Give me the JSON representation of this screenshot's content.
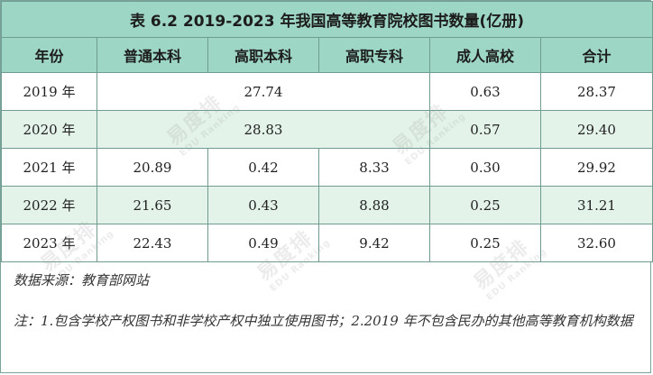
{
  "table": {
    "title": "表 6.2 2019-2023 年我国高等教育院校图书数量(亿册)",
    "headers": [
      "年份",
      "普通本科",
      "高职本科",
      "高职专科",
      "成人高校",
      "合计"
    ],
    "rows": [
      {
        "year": "2019 年",
        "merged": "27.74",
        "adult": "0.63",
        "total": "28.37"
      },
      {
        "year": "2020 年",
        "merged": "28.83",
        "adult": "0.57",
        "total": "29.40"
      },
      {
        "year": "2021 年",
        "undergrad": "20.89",
        "voc_bachelor": "0.42",
        "voc_college": "8.33",
        "adult": "0.30",
        "total": "29.92"
      },
      {
        "year": "2022 年",
        "undergrad": "21.65",
        "voc_bachelor": "0.43",
        "voc_college": "8.88",
        "adult": "0.25",
        "total": "31.21"
      },
      {
        "year": "2023 年",
        "undergrad": "22.43",
        "voc_bachelor": "0.49",
        "voc_college": "9.42",
        "adult": "0.25",
        "total": "32.60"
      }
    ]
  },
  "notes": {
    "source": "数据来源：教育部网站",
    "note": "注：1.包含学校产权图书和非学校产权中独立使用图书；2.2019 年不包含民办的其他高等教育机构数据"
  },
  "watermark": {
    "brand": "易度排",
    "sub": "EDU Ranking"
  }
}
